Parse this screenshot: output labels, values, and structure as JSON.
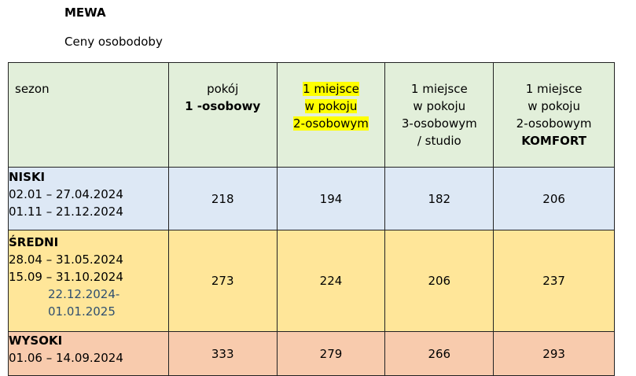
{
  "title": "MEWA",
  "subtitle": "Ceny osobodoby",
  "table": {
    "headers": {
      "season": "sezon",
      "col1_line1": "pokój",
      "col1_line2": "1 -osobowy",
      "col2_line1": "1 miejsce",
      "col2_line2": "w pokoju",
      "col2_line3": "2-osobowym",
      "col3_line1": "1 miejsce",
      "col3_line2": "w pokoju",
      "col3_line3": "3-osobowym",
      "col3_line4": "/ studio",
      "col4_line1": "1 miejsce",
      "col4_line2": "w pokoju",
      "col4_line3": "2-osobowym",
      "col4_line4": "KOMFORT"
    },
    "rows": [
      {
        "name": "NISKI",
        "dates": [
          "02.01 – 27.04.2024",
          "01.11 – 21.12.2024"
        ],
        "values": [
          "218",
          "194",
          "182",
          "206"
        ]
      },
      {
        "name": "ŚREDNI",
        "dates": [
          "28.04 – 31.05.2024",
          "15.09 – 31.10.2024"
        ],
        "extra_dates": [
          "22.12.2024-",
          "01.01.2025"
        ],
        "values": [
          "273",
          "224",
          "206",
          "237"
        ]
      },
      {
        "name": "WYSOKI",
        "dates": [
          "01.06 – 14.09.2024"
        ],
        "values": [
          "333",
          "279",
          "266",
          "293"
        ]
      }
    ]
  }
}
